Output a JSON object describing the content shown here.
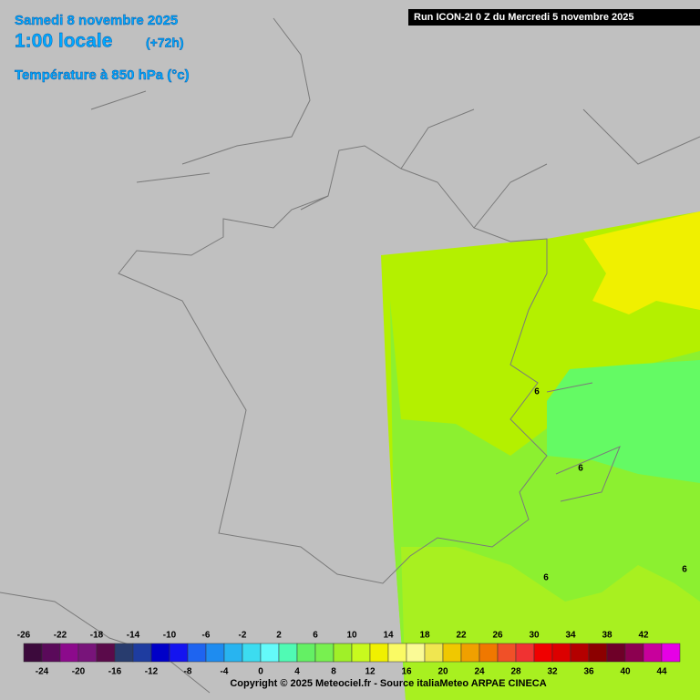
{
  "header": {
    "date": "Samedi 8 novembre 2025",
    "time": "1:00 locale",
    "lead": "(+72h)",
    "parameter": "Température à 850 hPa (°c)",
    "run": "Run ICON-2I 0 Z du Mercredi 5 novembre 2025"
  },
  "contour_labels": [
    "6",
    "6",
    "6",
    "6"
  ],
  "legend": {
    "values": [
      -26,
      -24,
      -22,
      -20,
      -18,
      -16,
      -14,
      -12,
      -10,
      -8,
      -6,
      -4,
      -2,
      0,
      2,
      4,
      6,
      8,
      10,
      12,
      14,
      16,
      18,
      20,
      22,
      24,
      26,
      28,
      30,
      32,
      34,
      36,
      38,
      40,
      42,
      44
    ],
    "colors": [
      "#3c0a3c",
      "#5a0a5a",
      "#8c0a8c",
      "#78147a",
      "#5a0a4a",
      "#283c6e",
      "#1e3ca0",
      "#0000c8",
      "#1414f0",
      "#1e64f0",
      "#1e8cf0",
      "#28b4f0",
      "#3cdcf0",
      "#64fafa",
      "#50fab4",
      "#64f064",
      "#78f050",
      "#a0f028",
      "#c8fa1e",
      "#f0f000",
      "#fafa64",
      "#fafa96",
      "#f0e650",
      "#f0c800",
      "#f0a000",
      "#f07800",
      "#f05028",
      "#f03232",
      "#f00000",
      "#dc0000",
      "#b40000",
      "#8c0000",
      "#6e0028",
      "#8c0050",
      "#c8009c",
      "#e600e6"
    ]
  },
  "footer": "Copyright © 2025 Meteociel.fr - Source italiaMeteo ARPAE CINECA"
}
